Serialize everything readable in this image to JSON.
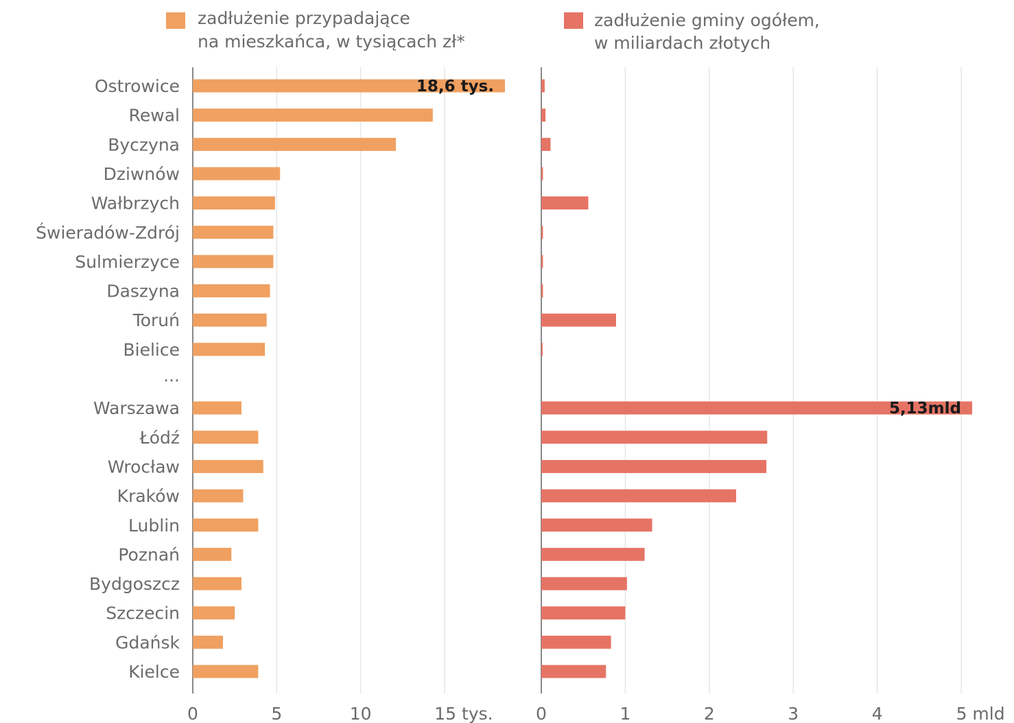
{
  "chart_data": {
    "type": "bar",
    "orientation": "horizontal",
    "categories": [
      "Ostrowice",
      "Rewal",
      "Byczyna",
      "Dziwnów",
      "Wałbrzych",
      "Świeradów-Zdrój",
      "Sulmierzyce",
      "Daszyna",
      "Toruń",
      "Bielice",
      "...",
      "Warszawa",
      "Łódź",
      "Wrocław",
      "Kraków",
      "Lublin",
      "Poznań",
      "Bydgoszcz",
      "Szczecin",
      "Gdańsk",
      "Kielce"
    ],
    "series": [
      {
        "name": "zadłużenie przypadające na mieszkańca, w tysiącach zł*",
        "legend_lines": [
          "zadłużenie przypadające",
          "na mieszkańca, w tysiącach zł*"
        ],
        "color": "#f0a060",
        "values": [
          18.6,
          14.3,
          12.1,
          5.2,
          4.9,
          4.8,
          4.8,
          4.6,
          4.4,
          4.3,
          null,
          2.9,
          3.9,
          4.2,
          3.0,
          3.9,
          2.3,
          2.9,
          2.5,
          1.8,
          3.9
        ],
        "data_labels": [
          {
            "index": 0,
            "text": "18,6 tys."
          }
        ],
        "xlim": [
          0,
          18.6
        ],
        "ticks": [
          0,
          5,
          10,
          15
        ],
        "tick_labels": [
          "0",
          "5",
          "10",
          "15 tys."
        ]
      },
      {
        "name": "zadłużenie gminy ogółem, w miliardach złotych",
        "legend_lines": [
          "zadłużenie gminy ogółem,",
          "w miliardach złotych"
        ],
        "color": "#e57465",
        "values": [
          0.04,
          0.05,
          0.11,
          0.02,
          0.56,
          0.02,
          0.02,
          0.02,
          0.89,
          0.01,
          null,
          5.13,
          2.69,
          2.68,
          2.32,
          1.32,
          1.23,
          1.02,
          1.0,
          0.83,
          0.77
        ],
        "data_labels": [
          {
            "index": 11,
            "text": "5,13mld"
          }
        ],
        "xlim": [
          0,
          5.13
        ],
        "ticks": [
          0,
          1,
          2,
          3,
          4,
          5
        ],
        "tick_labels": [
          "0",
          "1",
          "2",
          "3",
          "4",
          "5 mld"
        ]
      }
    ],
    "grid": true,
    "legend_position": "top"
  }
}
